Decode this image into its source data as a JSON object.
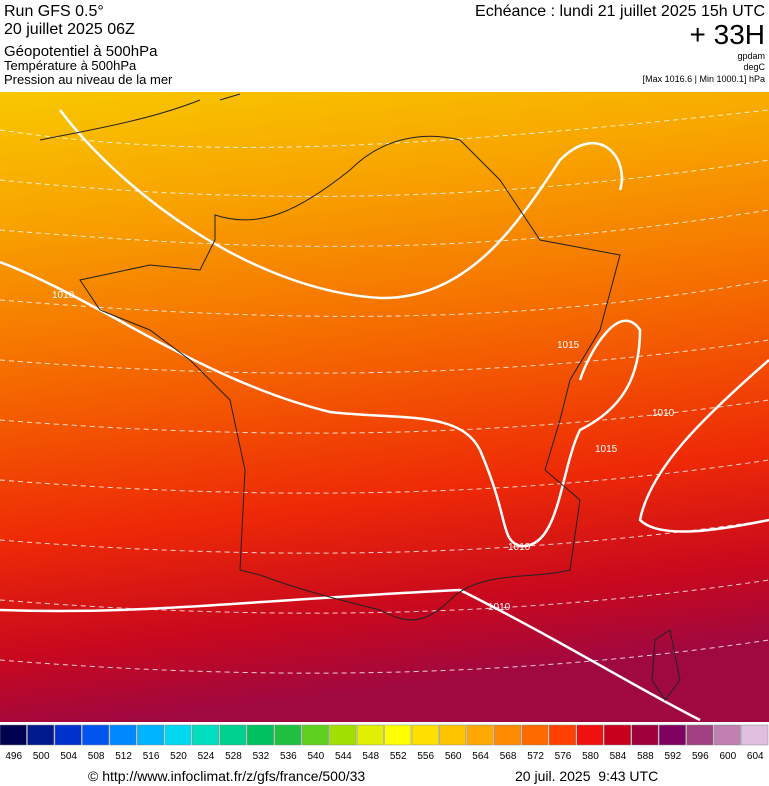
{
  "header": {
    "title": "Run GFS 0.5°",
    "run": "20 juillet 2025 06Z",
    "fields": [
      "Géopotentiel à 500hPa",
      "Température à 500hPa",
      "Pression au niveau de la mer"
    ],
    "forecast": "Echéance : lundi 21 juillet 2025 15h UTC",
    "lead": "+ 33H",
    "units": [
      "gpdam",
      "degC"
    ],
    "extremes": "[Max 1016.6 | Min 1000.1] hPa"
  },
  "map": {
    "isobar_labels": [
      "1010",
      "1015",
      "1010",
      "1015",
      "1010",
      "1010"
    ]
  },
  "legend": {
    "values": [
      496,
      500,
      504,
      508,
      512,
      516,
      520,
      524,
      528,
      532,
      536,
      540,
      544,
      548,
      552,
      556,
      560,
      564,
      568,
      572,
      576,
      580,
      584,
      588,
      592,
      596,
      600,
      604
    ],
    "colors": [
      "#000050",
      "#001a8c",
      "#0033cc",
      "#0055ee",
      "#0088ff",
      "#00b4ff",
      "#00d8f0",
      "#00e0c0",
      "#00d090",
      "#00c060",
      "#20c040",
      "#60d020",
      "#a0e000",
      "#e0f000",
      "#ffff00",
      "#ffe000",
      "#ffc400",
      "#ffa800",
      "#ff8c00",
      "#ff6a00",
      "#ff4000",
      "#f01010",
      "#c8001e",
      "#a0003c",
      "#800060",
      "#a04080",
      "#c080b0",
      "#e0c0e0"
    ]
  },
  "footer": {
    "source": "© http://www.infoclimat.fr/z/gfs/france/500/33",
    "date": "20 juil. 2025  9:43 UTC"
  }
}
